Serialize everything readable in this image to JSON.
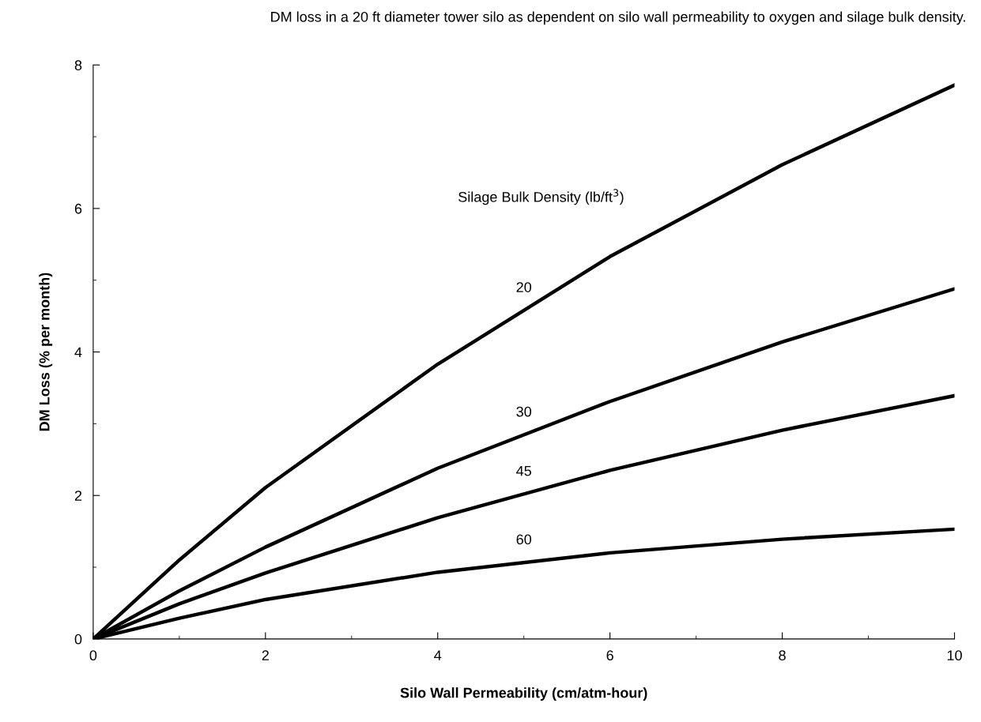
{
  "chart_data": {
    "type": "line",
    "title": "DM loss in a 20 ft diameter tower silo as dependent on silo wall permeability to oxygen and silage bulk density.",
    "xlabel": "Silo Wall Permeability (cm/atm-hour)",
    "ylabel": "DM Loss (% per month)",
    "x": [
      0,
      1,
      2,
      4,
      6,
      8,
      10
    ],
    "series": [
      {
        "name": "20",
        "color": "#000000",
        "values": [
          0,
          1.1,
          2.11,
          3.83,
          5.33,
          6.61,
          7.72
        ]
      },
      {
        "name": "30",
        "color": "#000000",
        "values": [
          0,
          0.67,
          1.28,
          2.38,
          3.31,
          4.14,
          4.88
        ]
      },
      {
        "name": "45",
        "color": "#000000",
        "values": [
          0,
          0.49,
          0.92,
          1.69,
          2.35,
          2.91,
          3.39
        ]
      },
      {
        "name": "60",
        "color": "#000000",
        "values": [
          0,
          0.29,
          0.55,
          0.93,
          1.2,
          1.39,
          1.53
        ]
      }
    ],
    "annotations": [
      "Silage Bulk Density (lb/ft$^{3}$)"
    ],
    "xlim": [
      0,
      10
    ],
    "xticks": [
      0,
      2,
      4,
      6,
      8,
      10
    ],
    "ylim": [
      0,
      8
    ],
    "yticks": [
      0,
      2,
      4,
      6,
      8
    ],
    "grid": false,
    "legend": false,
    "marker": "none",
    "line_style": "solid"
  }
}
